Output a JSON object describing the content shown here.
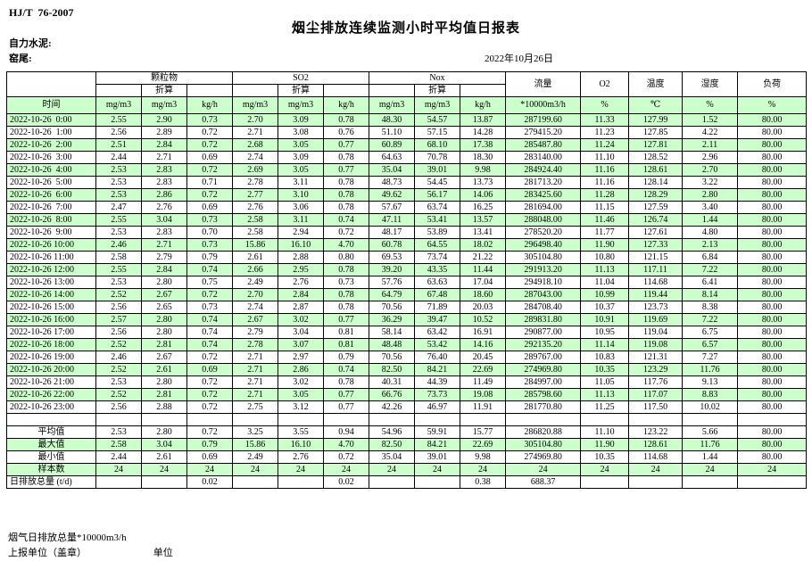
{
  "page": {
    "doc_code": "HJ/T  76-2007",
    "title": "烟尘排放连续监测小时平均值日报表",
    "company": "自力水泥:",
    "site": "窑尾:",
    "date": "2022年10月26日"
  },
  "table": {
    "header": {
      "time_label": "时间",
      "converted_label": "折算",
      "groups": [
        {
          "label": "颗粒物",
          "units": [
            "mg/m3",
            "mg/m3",
            "kg/h"
          ]
        },
        {
          "label": "SO2",
          "units": [
            "mg/m3",
            "mg/m3",
            "kg/h"
          ]
        },
        {
          "label": "Nox",
          "units": [
            "mg/m3",
            "mg/m3",
            "kg/h"
          ]
        }
      ],
      "singles": [
        {
          "label": "流量",
          "unit": "*10000m3/h"
        },
        {
          "label": "O2",
          "unit": "%"
        },
        {
          "label": "温度",
          "unit": "℃"
        },
        {
          "label": "湿度",
          "unit": "%"
        },
        {
          "label": "负荷",
          "unit": "%"
        }
      ]
    },
    "rows": [
      {
        "time": "2022-10-26  0:00",
        "values": [
          "2.55",
          "2.90",
          "0.73",
          "2.70",
          "3.09",
          "0.78",
          "48.30",
          "54.57",
          "13.87",
          "287199.60",
          "11.33",
          "127.99",
          "1.52",
          "80.00"
        ]
      },
      {
        "time": "2022-10-26  1:00",
        "values": [
          "2.56",
          "2.89",
          "0.72",
          "2.71",
          "3.08",
          "0.76",
          "51.10",
          "57.15",
          "14.28",
          "279415.20",
          "11.23",
          "127.85",
          "4.22",
          "80.00"
        ]
      },
      {
        "time": "2022-10-26  2:00",
        "values": [
          "2.51",
          "2.84",
          "0.72",
          "2.68",
          "3.05",
          "0.77",
          "60.89",
          "68.10",
          "17.38",
          "285487.80",
          "11.24",
          "127.81",
          "2.11",
          "80.00"
        ]
      },
      {
        "time": "2022-10-26  3:00",
        "values": [
          "2.44",
          "2.71",
          "0.69",
          "2.74",
          "3.09",
          "0.78",
          "64.63",
          "70.78",
          "18.30",
          "283140.00",
          "11.10",
          "128.52",
          "2.96",
          "80.00"
        ]
      },
      {
        "time": "2022-10-26  4:00",
        "values": [
          "2.53",
          "2.83",
          "0.72",
          "2.69",
          "3.05",
          "0.77",
          "35.04",
          "39.01",
          "9.98",
          "284924.40",
          "11.16",
          "128.61",
          "2.70",
          "80.00"
        ]
      },
      {
        "time": "2022-10-26  5:00",
        "values": [
          "2.53",
          "2.83",
          "0.71",
          "2.78",
          "3.11",
          "0.78",
          "48.73",
          "54.45",
          "13.73",
          "281713.20",
          "11.16",
          "128.14",
          "3.22",
          "80.00"
        ]
      },
      {
        "time": "2022-10-26  6:00",
        "values": [
          "2.53",
          "2.86",
          "0.72",
          "2.77",
          "3.10",
          "0.78",
          "49.62",
          "56.17",
          "14.06",
          "283425.60",
          "11.28",
          "128.29",
          "2.80",
          "80.00"
        ]
      },
      {
        "time": "2022-10-26  7:00",
        "values": [
          "2.47",
          "2.76",
          "0.69",
          "2.76",
          "3.06",
          "0.78",
          "57.67",
          "63.74",
          "16.25",
          "281694.00",
          "11.15",
          "127.59",
          "3.40",
          "80.00"
        ]
      },
      {
        "time": "2022-10-26  8:00",
        "values": [
          "2.55",
          "3.04",
          "0.73",
          "2.58",
          "3.11",
          "0.74",
          "47.11",
          "53.41",
          "13.57",
          "288048.00",
          "11.46",
          "126.74",
          "1.44",
          "80.00"
        ]
      },
      {
        "time": "2022-10-26  9:00",
        "values": [
          "2.53",
          "2.83",
          "0.70",
          "2.58",
          "2.94",
          "0.72",
          "48.17",
          "53.89",
          "13.41",
          "278520.20",
          "11.77",
          "127.61",
          "4.80",
          "80.00"
        ]
      },
      {
        "time": "2022-10-26 10:00",
        "values": [
          "2.46",
          "2.71",
          "0.73",
          "15.86",
          "16.10",
          "4.70",
          "60.78",
          "64.55",
          "18.02",
          "296498.40",
          "11.90",
          "127.33",
          "2.13",
          "80.00"
        ]
      },
      {
        "time": "2022-10-26 11:00",
        "values": [
          "2.58",
          "2.79",
          "0.79",
          "2.61",
          "2.88",
          "0.80",
          "69.53",
          "73.74",
          "21.22",
          "305104.80",
          "10.80",
          "121.15",
          "6.84",
          "80.00"
        ]
      },
      {
        "time": "2022-10-26 12:00",
        "values": [
          "2.55",
          "2.84",
          "0.74",
          "2.66",
          "2.95",
          "0.78",
          "39.20",
          "43.35",
          "11.44",
          "291913.20",
          "11.13",
          "117.11",
          "7.22",
          "80.00"
        ]
      },
      {
        "time": "2022-10-26 13:00",
        "values": [
          "2.53",
          "2.80",
          "0.75",
          "2.49",
          "2.76",
          "0.73",
          "57.76",
          "63.63",
          "17.04",
          "294918.10",
          "11.04",
          "114.68",
          "6.41",
          "80.00"
        ]
      },
      {
        "time": "2022-10-26 14:00",
        "values": [
          "2.52",
          "2.67",
          "0.72",
          "2.70",
          "2.84",
          "0.78",
          "64.79",
          "67.48",
          "18.60",
          "287043.00",
          "10.99",
          "119.44",
          "8.14",
          "80.00"
        ]
      },
      {
        "time": "2022-10-26 15:00",
        "values": [
          "2.56",
          "2.65",
          "0.73",
          "2.74",
          "2.87",
          "0.78",
          "70.56",
          "71.89",
          "20.03",
          "284708.40",
          "10.37",
          "123.73",
          "8.38",
          "80.00"
        ]
      },
      {
        "time": "2022-10-26 16:00",
        "values": [
          "2.57",
          "2.80",
          "0.74",
          "2.67",
          "3.02",
          "0.77",
          "36.29",
          "39.47",
          "10.52",
          "289831.80",
          "10.91",
          "119.69",
          "7.22",
          "80.00"
        ]
      },
      {
        "time": "2022-10-26 17:00",
        "values": [
          "2.56",
          "2.80",
          "0.74",
          "2.79",
          "3.04",
          "0.81",
          "58.14",
          "63.42",
          "16.91",
          "290877.00",
          "10.95",
          "119.04",
          "6.75",
          "80.00"
        ]
      },
      {
        "time": "2022-10-26 18:00",
        "values": [
          "2.52",
          "2.81",
          "0.74",
          "2.78",
          "3.07",
          "0.81",
          "48.48",
          "53.42",
          "14.16",
          "292135.20",
          "11.14",
          "119.08",
          "6.57",
          "80.00"
        ]
      },
      {
        "time": "2022-10-26 19:00",
        "values": [
          "2.46",
          "2.67",
          "0.72",
          "2.71",
          "2.97",
          "0.79",
          "70.56",
          "76.40",
          "20.45",
          "289767.00",
          "10.83",
          "121.31",
          "7.27",
          "80.00"
        ]
      },
      {
        "time": "2022-10-26 20:00",
        "values": [
          "2.52",
          "2.61",
          "0.69",
          "2.71",
          "2.86",
          "0.74",
          "82.50",
          "84.21",
          "22.69",
          "274969.80",
          "10.35",
          "123.29",
          "11.76",
          "80.00"
        ]
      },
      {
        "time": "2022-10-26 21:00",
        "values": [
          "2.53",
          "2.80",
          "0.72",
          "2.71",
          "3.02",
          "0.78",
          "40.31",
          "44.39",
          "11.49",
          "284997.00",
          "11.05",
          "117.76",
          "9.13",
          "80.00"
        ]
      },
      {
        "time": "2022-10-26 22:00",
        "values": [
          "2.52",
          "2.81",
          "0.72",
          "2.71",
          "3.05",
          "0.77",
          "66.76",
          "73.73",
          "19.08",
          "285798.60",
          "11.13",
          "117.07",
          "8.83",
          "80.00"
        ]
      },
      {
        "time": "2022-10-26 23:00",
        "values": [
          "2.56",
          "2.88",
          "0.72",
          "2.75",
          "3.12",
          "0.77",
          "42.26",
          "46.97",
          "11.91",
          "281770.80",
          "11.25",
          "117.50",
          "10.02",
          "80.00"
        ]
      }
    ],
    "summary": [
      {
        "label": "平均值",
        "values": [
          "2.53",
          "2.80",
          "0.72",
          "3.25",
          "3.55",
          "0.94",
          "54.96",
          "59.91",
          "15.77",
          "286820.88",
          "11.10",
          "123.22",
          "5.66",
          "80.00"
        ]
      },
      {
        "label": "最大值",
        "values": [
          "2.58",
          "3.04",
          "0.79",
          "15.86",
          "16.10",
          "4.70",
          "82.50",
          "84.21",
          "22.69",
          "305104.80",
          "11.90",
          "128.61",
          "11.76",
          "80.00"
        ]
      },
      {
        "label": "最小值",
        "values": [
          "2.44",
          "2.61",
          "0.69",
          "2.49",
          "2.76",
          "0.72",
          "35.04",
          "39.01",
          "9.98",
          "274969.80",
          "10.35",
          "114.68",
          "1.44",
          "80.00"
        ]
      },
      {
        "label": "样本数",
        "values": [
          "24",
          "24",
          "24",
          "24",
          "24",
          "24",
          "24",
          "24",
          "24",
          "24",
          "24",
          "24",
          "24",
          "24"
        ]
      },
      {
        "label": "日排放总量 (t/d)",
        "values": [
          "",
          "",
          "0.02",
          "",
          "",
          "0.02",
          "",
          "",
          "0.38",
          "688.37",
          "",
          "",
          "",
          ""
        ]
      }
    ]
  },
  "footer": {
    "flue_total": "烟气日排放总量*10000m3/h",
    "report_unit": "上报单位（盖章）",
    "unit": "单位"
  }
}
